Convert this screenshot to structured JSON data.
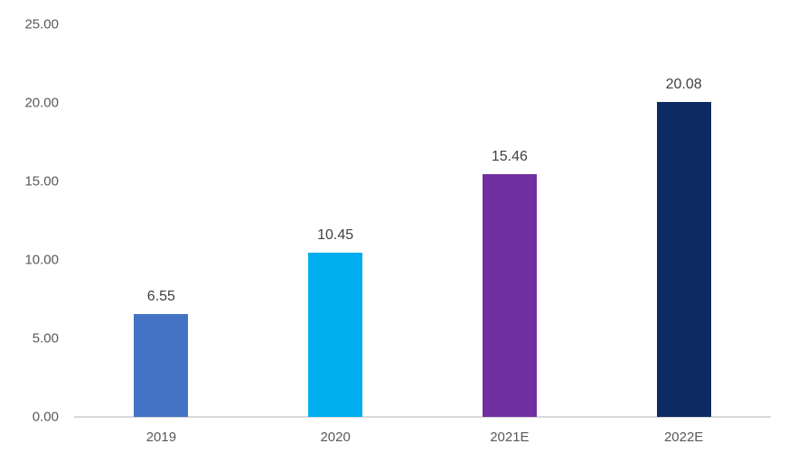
{
  "chart_data": {
    "type": "bar",
    "categories": [
      "2019",
      "2020",
      "2021E",
      "2022E"
    ],
    "values": [
      6.55,
      10.45,
      15.46,
      20.08
    ],
    "data_labels": [
      "6.55",
      "10.45",
      "15.46",
      "20.08"
    ],
    "bar_colors": [
      "#4472C4",
      "#00AEEF",
      "#7030A0",
      "#0E2A63"
    ],
    "title": "",
    "xlabel": "",
    "ylabel": "",
    "ylim": [
      0,
      25
    ],
    "y_ticks": [
      0,
      5,
      10,
      15,
      20,
      25
    ],
    "y_tick_labels": [
      "0.00",
      "5.00",
      "10.00",
      "15.00",
      "20.00",
      "25.00"
    ],
    "grid": false,
    "legend": false,
    "colors": {
      "axis_line": "#D9D9D9",
      "tick_label": "#595959",
      "data_label": "#404040",
      "background": "#FFFFFF"
    }
  }
}
